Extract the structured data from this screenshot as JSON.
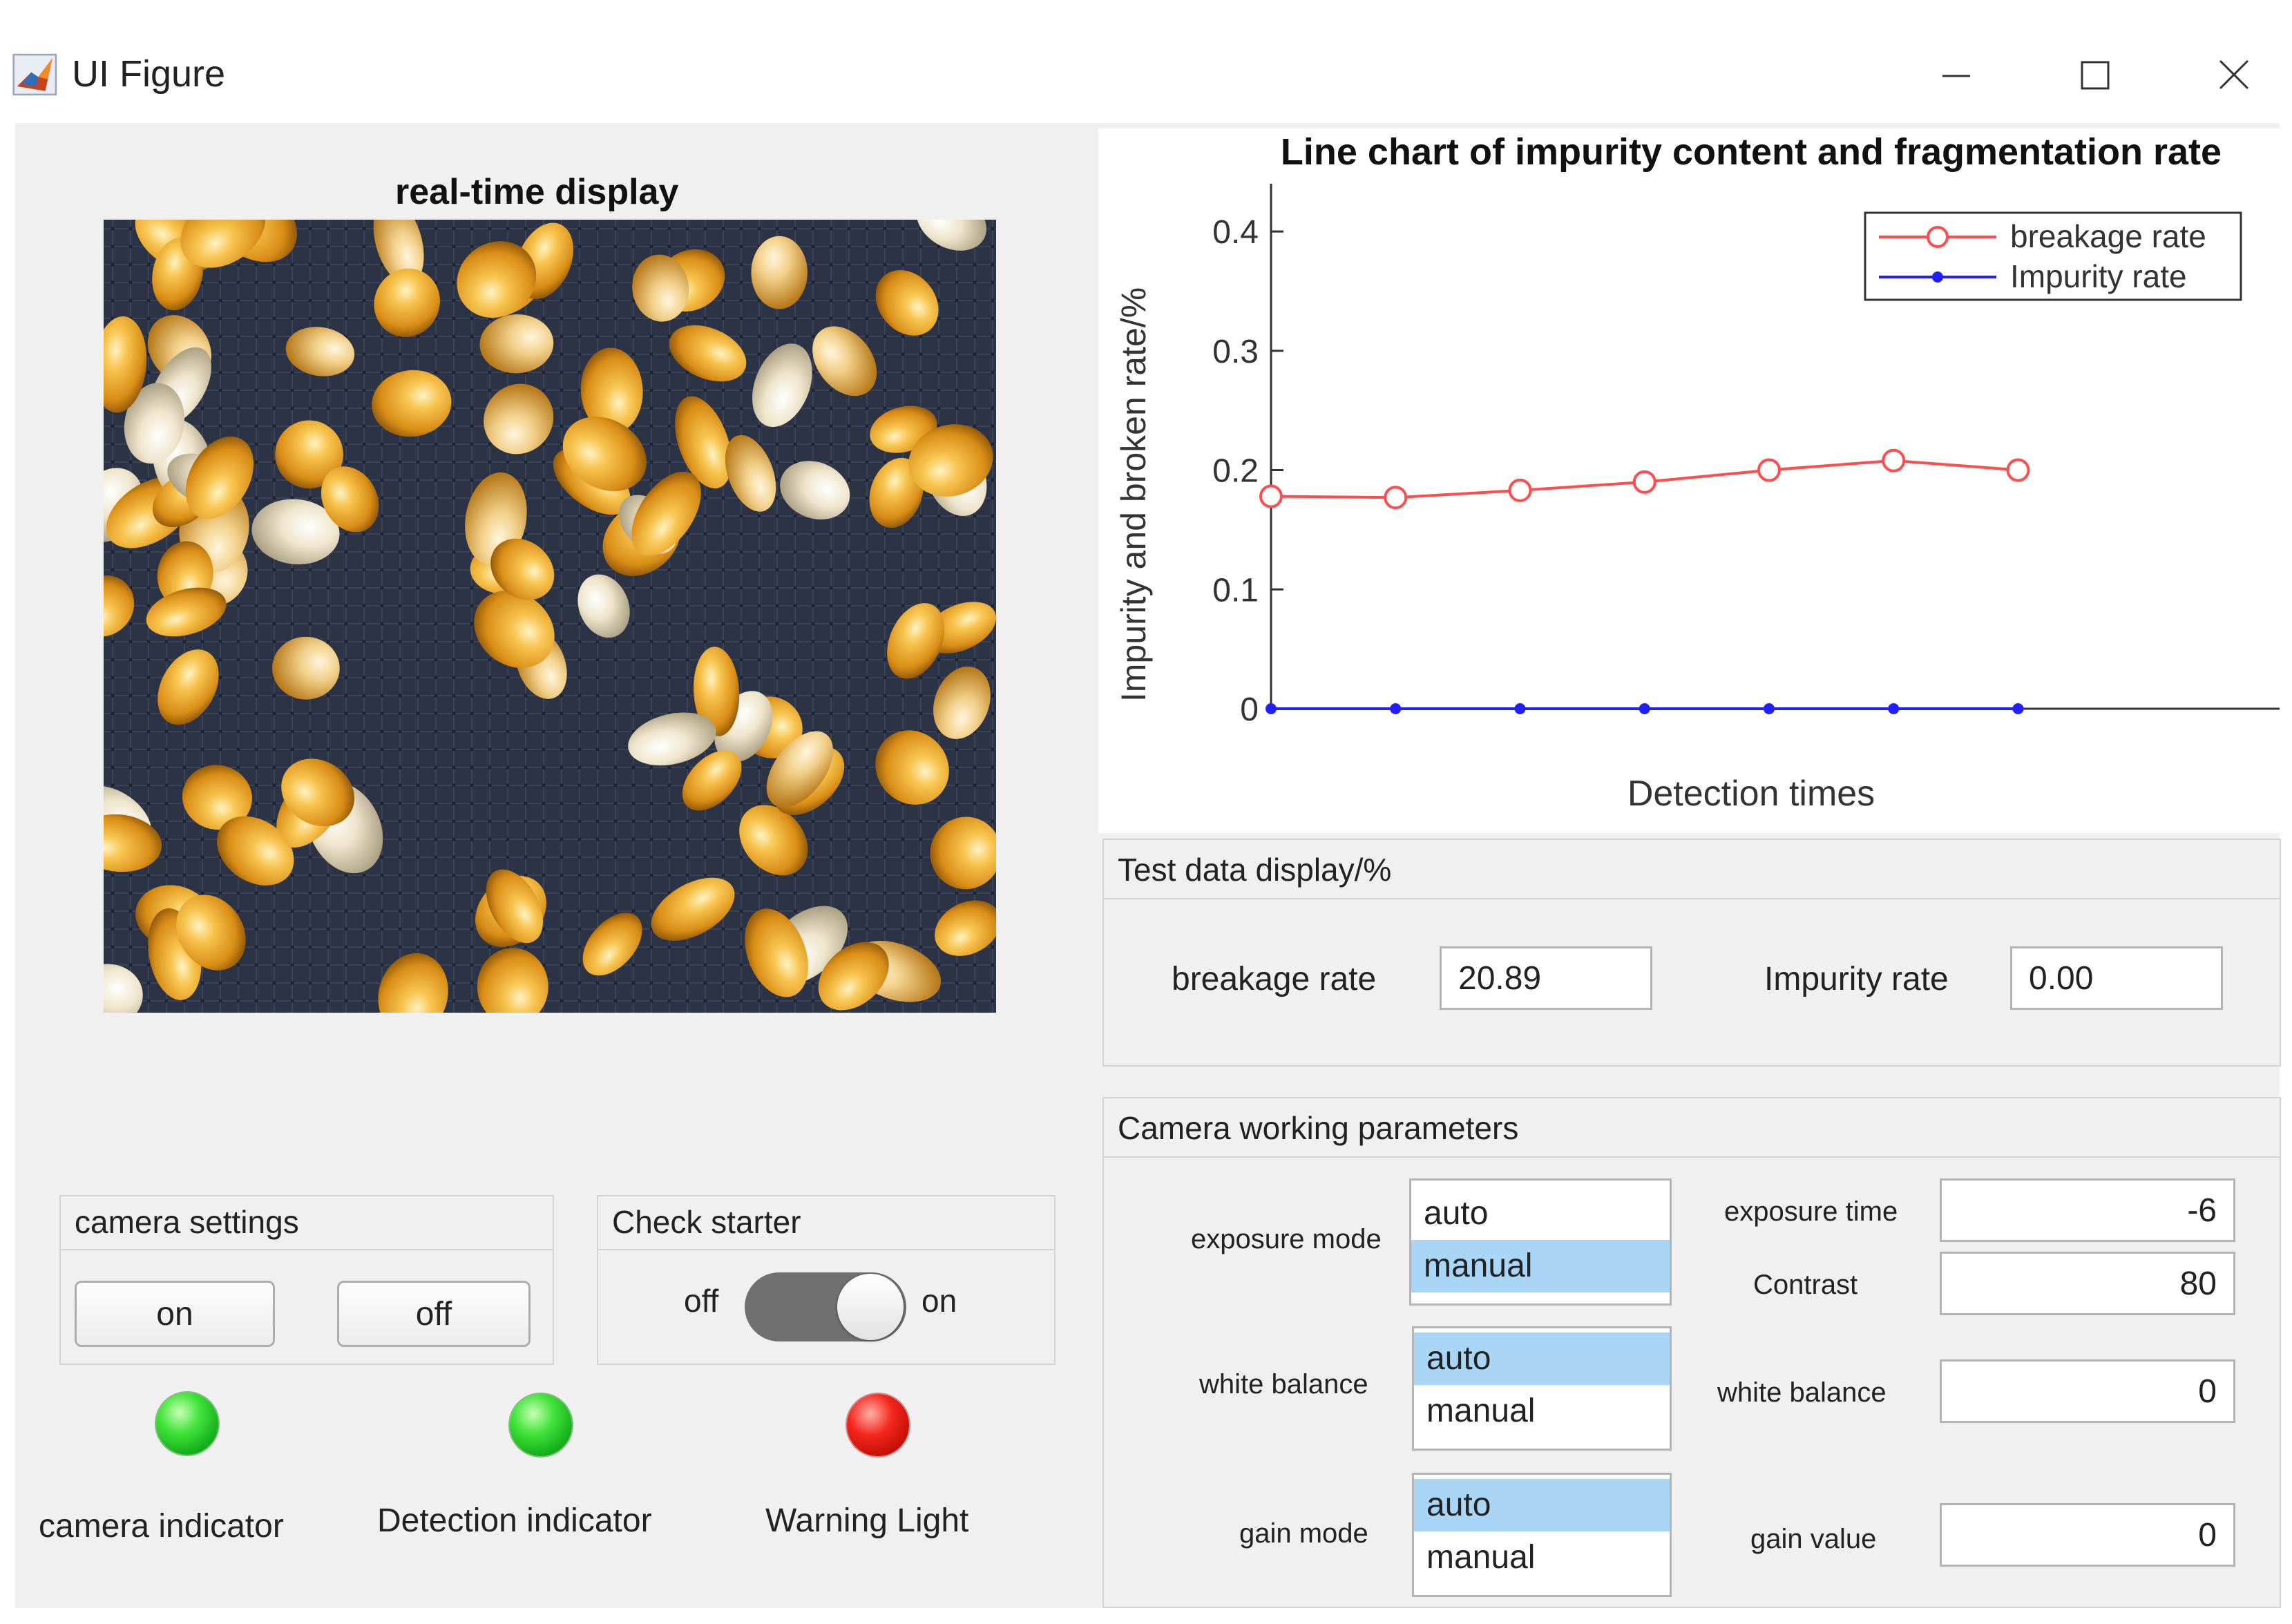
{
  "window": {
    "title": "UI Figure",
    "icon": "matlab-logo-icon",
    "controls": [
      "minimize-icon",
      "maximize-icon",
      "close-icon"
    ]
  },
  "display": {
    "title": "real-time display",
    "image_icon": "corn-kernels-camera-image"
  },
  "camera_settings": {
    "title": "camera settings",
    "on_label": "on",
    "off_label": "off"
  },
  "check_starter": {
    "title": "Check starter",
    "off_label": "off",
    "on_label": "on",
    "state": "on"
  },
  "indicators": [
    {
      "label": "camera indicator",
      "color": "#22c82a"
    },
    {
      "label": "Detection indicator",
      "color": "#22c82a"
    },
    {
      "label": "Warning Light",
      "color": "#e3170d"
    }
  ],
  "chart_data": {
    "type": "line",
    "title": "Line chart of impurity content and fragmentation rate",
    "xlabel": "Detection times",
    "ylabel": "Impurity and broken rate/%",
    "x": [
      1,
      2,
      3,
      4,
      5,
      6,
      7
    ],
    "xlim": [
      1,
      9.1
    ],
    "ylim": [
      0,
      0.44
    ],
    "yticks": [
      0,
      0.1,
      0.2,
      0.3,
      0.4
    ],
    "ytick_labels": [
      "0",
      "0.1",
      "0.2",
      "0.3",
      "0.4"
    ],
    "grid": false,
    "legend_position": "top-right",
    "series": [
      {
        "name": "breakage rate",
        "color": "#ff4d4d",
        "marker": "circle",
        "values": [
          0.178,
          0.177,
          0.183,
          0.19,
          0.2,
          0.208,
          0.2
        ]
      },
      {
        "name": "Impurity rate",
        "color": "#1f1fff",
        "marker": "dot",
        "values": [
          0,
          0,
          0,
          0,
          0,
          0,
          0
        ]
      }
    ]
  },
  "test_data": {
    "title": "Test data display/%",
    "breakage_label": "breakage rate",
    "breakage_value": "20.89",
    "impurity_label": "Impurity rate",
    "impurity_value": "0.00"
  },
  "camera_params": {
    "title": "Camera working parameters",
    "exposure_mode": {
      "label": "exposure mode",
      "options": [
        "auto",
        "manual"
      ],
      "selected": "manual"
    },
    "white_balance_mode": {
      "label": "white balance",
      "options": [
        "auto",
        "manual"
      ],
      "selected": "auto"
    },
    "gain_mode": {
      "label": "gain mode",
      "options": [
        "auto",
        "manual"
      ],
      "selected": "auto"
    },
    "exposure_time": {
      "label": "exposure time",
      "value": "-6"
    },
    "contrast": {
      "label": "Contrast",
      "value": "80"
    },
    "white_balance_value": {
      "label": "white balance",
      "value": "0"
    },
    "gain_value": {
      "label": "gain value",
      "value": "0"
    }
  }
}
